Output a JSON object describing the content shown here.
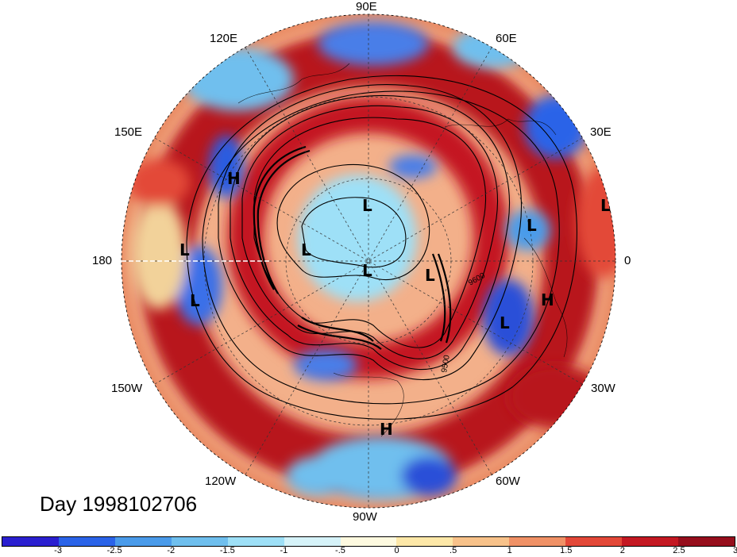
{
  "title": "Day 1998102706",
  "longitude_labels": {
    "lon_90e": "90E",
    "lon_120e": "120E",
    "lon_60e": "60E",
    "lon_150e": "150E",
    "lon_30e": "30E",
    "lon_180": "180",
    "lon_0": "0",
    "lon_150w": "150W",
    "lon_30w": "30W",
    "lon_120w": "120W",
    "lon_60w": "60W",
    "lon_90w": "90W"
  },
  "contour_labels": [
    "9600",
    "9500"
  ],
  "pressure_centers": [
    {
      "kind": "H"
    },
    {
      "kind": "L"
    },
    {
      "kind": "L"
    },
    {
      "kind": "L"
    },
    {
      "kind": "L"
    },
    {
      "kind": "L"
    },
    {
      "kind": "L"
    },
    {
      "kind": "L"
    },
    {
      "kind": "H"
    },
    {
      "kind": "L"
    },
    {
      "kind": "L"
    },
    {
      "kind": "H"
    }
  ],
  "colorbar": {
    "colors": [
      "#2a1fd0",
      "#2a63e8",
      "#4a9bea",
      "#6fbfee",
      "#9ee0f7",
      "#d6f3f9",
      "#fefae0",
      "#fde8a8",
      "#f8c28a",
      "#f09166",
      "#e34838",
      "#c41822",
      "#960e1c"
    ],
    "tick_labels": [
      "-3",
      "-2.5",
      "-2",
      "-1.5",
      "-1",
      "-.5",
      "0",
      ".5",
      "1",
      "1.5",
      "2",
      "2.5",
      "3"
    ]
  }
}
